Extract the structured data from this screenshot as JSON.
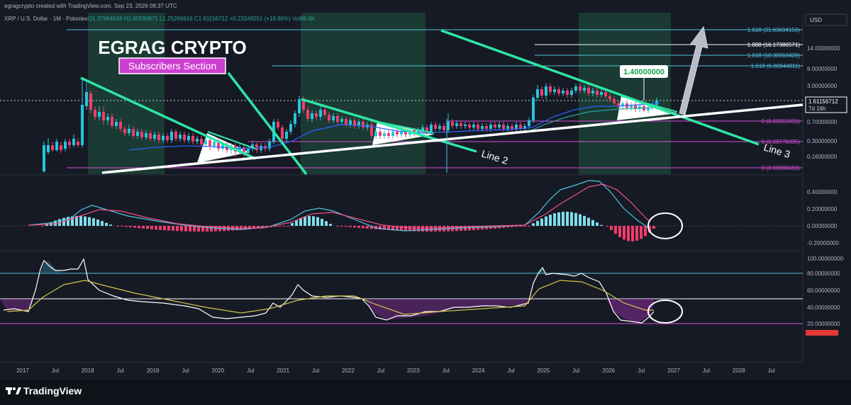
{
  "header": {
    "attribution": "egragcrypto created with TradingView.com, Sep 23, 2026 08:37 UTC",
    "symbol": "XRP / U.S. Dollar · 1M · Poloniex",
    "ohlc": "O1.37964934 H1.65590871 L1.25269616 C1.61156712 +0.23249251 (+16.86%) Vol98.6K",
    "currency": "USD"
  },
  "overlay": {
    "title": "EGRAG CRYPTO",
    "subtitle": "Subscribers Section",
    "line2_label": "Line 2",
    "line3_label": "Line 3",
    "target_label": "1.40000000",
    "last_price": "1.61156712",
    "countdown": "7d 16h"
  },
  "price_axis": [
    "14.00000000",
    "6.00000000",
    "3.00000000",
    "0.70000000",
    "0.30000000",
    "0.16000000"
  ],
  "fib_levels": [
    {
      "label": "1.618 (31.63604156)",
      "color": "#4dc4e0"
    },
    {
      "label": "1.888 (16.17380571)",
      "color": "#ffffff"
    },
    {
      "label": "1.618 (10.30810428)",
      "color": "#4dc4e0"
    },
    {
      "label": "1.618 (6.80944811)",
      "color": "#4dc4e0"
    },
    {
      "label": "0 (0.69315031)",
      "color": "#d94fd9"
    },
    {
      "label": "0 (0.28778335)",
      "color": "#d94fd9"
    },
    {
      "label": "0 (0.09808493)",
      "color": "#d94fd9"
    }
  ],
  "macd_axis": [
    "0.40000000",
    "0.20000000",
    "0.00000000",
    "-0.20000000"
  ],
  "rsi_axis": [
    "100.00000000",
    "80.00000000",
    "60.00000000",
    "40.00000000",
    "20.00000000"
  ],
  "time_axis": [
    "2017",
    "Jul",
    "2018",
    "Jul",
    "2019",
    "Jul",
    "2020",
    "Jul",
    "2021",
    "Jul",
    "2022",
    "Jul",
    "2023",
    "Jul",
    "2024",
    "Jul",
    "2025",
    "Jul",
    "2026",
    "Jul",
    "2027",
    "Jul",
    "2028",
    "Jul"
  ],
  "brand": "TradingView",
  "colors": {
    "background": "#161a25",
    "bull": "#26c6da",
    "bear": "#f23c6e",
    "trendline": "#2ee6a5",
    "support": "#ffffff",
    "ema": "#2962ff",
    "fib_cyan": "#4dc4e0",
    "fib_magenta": "#d94fd9"
  },
  "chart_data": [
    {
      "type": "line",
      "title": "XRP / U.S. Dollar · 1M · Poloniex",
      "ylabel": "USD",
      "scale": "log",
      "x_range": [
        "2017",
        "2028"
      ],
      "y_range": [
        0.09,
        35
      ],
      "series": [
        {
          "name": "XRP",
          "x": [
            "2017-03",
            "2017-06",
            "2018-01",
            "2018-06",
            "2019-01",
            "2019-06",
            "2020-01",
            "2020-06",
            "2021-01",
            "2021-04",
            "2021-09",
            "2022-01",
            "2022-06",
            "2023-01",
            "2023-07",
            "2024-01",
            "2024-07",
            "2024-11",
            "2025-01",
            "2025-07",
            "2026-01",
            "2026-06",
            "2026-09"
          ],
          "values": [
            0.1,
            0.3,
            2.5,
            0.5,
            0.35,
            0.4,
            0.22,
            0.2,
            0.5,
            1.4,
            1.1,
            0.75,
            0.35,
            0.35,
            0.5,
            0.55,
            0.55,
            1.3,
            2.3,
            2.6,
            2.0,
            1.4,
            1.61
          ]
        }
      ],
      "grid": false
    },
    {
      "type": "line",
      "title": "",
      "y_range": [
        -0.3,
        0.6
      ],
      "series": [
        {
          "name": "",
          "x": [
            "2017",
            "2018",
            "2019",
            "2020",
            "2021",
            "2022",
            "2023",
            "2024",
            "2025",
            "2025-07",
            "2026",
            "2026-09"
          ],
          "values": [
            0.0,
            0.12,
            0.05,
            -0.02,
            0.08,
            0.0,
            -0.04,
            0.0,
            0.25,
            0.5,
            0.1,
            -0.18
          ]
        }
      ]
    },
    {
      "type": "line",
      "title": "",
      "y_range": [
        0,
        100
      ],
      "series": [
        {
          "name": "",
          "x": [
            "2017",
            "2017-06",
            "2018",
            "2018-06",
            "2019",
            "2020",
            "2021",
            "2021-04",
            "2022",
            "2023",
            "2024",
            "2025",
            "2025-07",
            "2026",
            "2026-07",
            "2026-09"
          ],
          "values": [
            38,
            90,
            85,
            60,
            50,
            32,
            42,
            75,
            52,
            28,
            40,
            85,
            80,
            35,
            22,
            40
          ]
        }
      ]
    }
  ]
}
